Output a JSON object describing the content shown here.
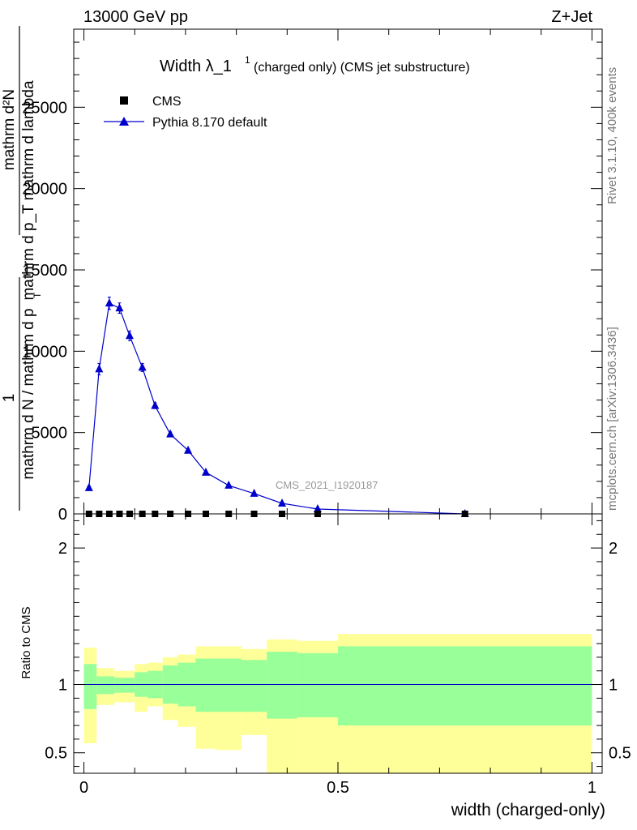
{
  "header": {
    "left": "13000 GeV pp",
    "right": "Z+Jet"
  },
  "side": {
    "rivet": "Rivet 3.1.10,  400k events",
    "mcplots": "mcplots.cern.ch [arXiv:1306.3436]"
  },
  "chart_data": [
    {
      "type": "line",
      "title_main": "Width λ_1",
      "title_sup": "1",
      "title_rest": "(charged only) (CMS jet substructure)",
      "watermark": "CMS_2021_I1920187",
      "ylabel_num": "mathrm d²N",
      "ylabel_den": "mathrm d p_T mathrm d lambda",
      "ylabel_den_sub": "T",
      "ylabel_frac_num": "1",
      "ylabel_frac_den": "mathrm d N / mathrm d p",
      "ylim": [
        0,
        29800
      ],
      "xlim": [
        -0.02,
        1.02
      ],
      "yticks": [
        {
          "v": 0,
          "label": "0"
        },
        {
          "v": 5000,
          "label": "5000"
        },
        {
          "v": 10000,
          "label": "10000"
        },
        {
          "v": 15000,
          "label": "15000"
        },
        {
          "v": 20000,
          "label": "20000"
        },
        {
          "v": 25000,
          "label": "25000"
        }
      ],
      "legend": [
        {
          "label": "CMS",
          "marker": "square",
          "color": "#000000"
        },
        {
          "label": "Pythia 8.170 default",
          "marker": "triangle",
          "color": "#0000cc"
        }
      ],
      "series": [
        {
          "name": "CMS",
          "x": [
            0.01,
            0.03,
            0.05,
            0.07,
            0.09,
            0.115,
            0.14,
            0.17,
            0.205,
            0.24,
            0.285,
            0.335,
            0.39,
            0.46,
            0.75
          ],
          "y": [
            0,
            0,
            0,
            0,
            0,
            0,
            0,
            0,
            0,
            0,
            0,
            0,
            0,
            0,
            0
          ]
        },
        {
          "name": "Pythia 8.170 default",
          "x": [
            0.01,
            0.03,
            0.05,
            0.07,
            0.09,
            0.115,
            0.14,
            0.17,
            0.205,
            0.24,
            0.285,
            0.335,
            0.39,
            0.46,
            0.75
          ],
          "y": [
            1600,
            8900,
            12950,
            12650,
            10950,
            9000,
            6650,
            4900,
            3900,
            2550,
            1750,
            1250,
            650,
            300,
            0
          ],
          "err": [
            120,
            350,
            380,
            320,
            300,
            250,
            180,
            130,
            110,
            80,
            60,
            40,
            30,
            20,
            0
          ]
        }
      ]
    },
    {
      "type": "area",
      "ylabel": "Ratio to CMS",
      "xlabel": "width (charged-only)",
      "ylim": [
        0.35,
        2.25
      ],
      "xlim": [
        -0.02,
        1.02
      ],
      "yticks": [
        {
          "v": 0.5,
          "label": "0.5"
        },
        {
          "v": 1,
          "label": "1"
        },
        {
          "v": 2,
          "label": "2"
        }
      ],
      "xticks": [
        {
          "v": 0,
          "label": "0"
        },
        {
          "v": 0.5,
          "label": "0.5"
        },
        {
          "v": 1,
          "label": "1"
        }
      ],
      "bins": [
        {
          "x0": 0.0,
          "x1": 0.025,
          "g": [
            0.82,
            1.15
          ],
          "y": [
            0.57,
            1.27
          ]
        },
        {
          "x0": 0.025,
          "x1": 0.06,
          "g": [
            0.93,
            1.06
          ],
          "y": [
            0.85,
            1.12
          ]
        },
        {
          "x0": 0.06,
          "x1": 0.1,
          "g": [
            0.94,
            1.05
          ],
          "y": [
            0.87,
            1.1
          ]
        },
        {
          "x0": 0.1,
          "x1": 0.125,
          "g": [
            0.91,
            1.09
          ],
          "y": [
            0.8,
            1.15
          ]
        },
        {
          "x0": 0.125,
          "x1": 0.155,
          "g": [
            0.9,
            1.1
          ],
          "y": [
            0.84,
            1.16
          ]
        },
        {
          "x0": 0.155,
          "x1": 0.185,
          "g": [
            0.86,
            1.14
          ],
          "y": [
            0.74,
            1.2
          ]
        },
        {
          "x0": 0.185,
          "x1": 0.22,
          "g": [
            0.84,
            1.16
          ],
          "y": [
            0.69,
            1.22
          ]
        },
        {
          "x0": 0.22,
          "x1": 0.26,
          "g": [
            0.8,
            1.19
          ],
          "y": [
            0.53,
            1.28
          ]
        },
        {
          "x0": 0.26,
          "x1": 0.31,
          "g": [
            0.8,
            1.19
          ],
          "y": [
            0.52,
            1.28
          ]
        },
        {
          "x0": 0.31,
          "x1": 0.36,
          "g": [
            0.8,
            1.18
          ],
          "y": [
            0.63,
            1.26
          ]
        },
        {
          "x0": 0.36,
          "x1": 0.42,
          "g": [
            0.75,
            1.24
          ],
          "y": [
            0.35,
            1.33
          ]
        },
        {
          "x0": 0.42,
          "x1": 0.5,
          "g": [
            0.76,
            1.23
          ],
          "y": [
            0.35,
            1.32
          ]
        },
        {
          "x0": 0.5,
          "x1": 1.0,
          "g": [
            0.7,
            1.28
          ],
          "y": [
            0.35,
            1.37
          ]
        }
      ],
      "reference_line": 1,
      "colors": {
        "green": "#99ff99",
        "yellow": "#ffff99",
        "blue": "#0000cc"
      }
    }
  ]
}
